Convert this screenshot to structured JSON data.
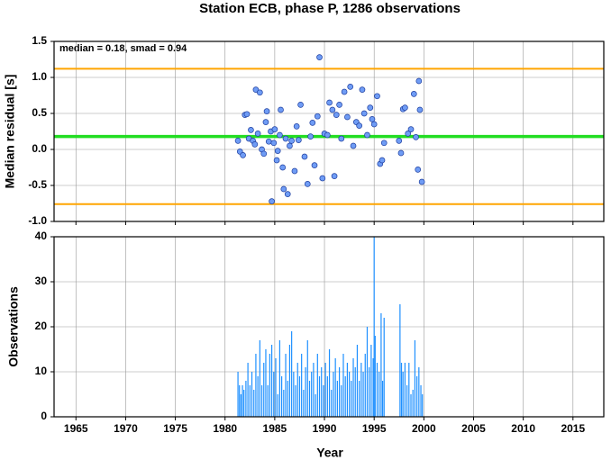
{
  "chart_data": [
    {
      "type": "scatter",
      "title": "Station ECB, phase P, 1286 observations",
      "ylabel": "Median residual [s]",
      "annotation": "median = 0.18, smad = 0.94",
      "xlim": [
        1962.8,
        2018.1
      ],
      "xticks": [
        1965,
        1970,
        1975,
        1980,
        1985,
        1990,
        1995,
        2000,
        2005,
        2010,
        2015
      ],
      "ylim": [
        -1.0,
        1.5
      ],
      "yticks": [
        {
          "value": -1.0,
          "label": "-1.0"
        },
        -0.5,
        {
          "value": 0.0,
          "label": "0.0"
        },
        0.5,
        {
          "value": 1.0,
          "label": "1.0"
        },
        1.5
      ],
      "grid": true,
      "color": "#6f9cf5",
      "edgecolor": "#1f3f9f",
      "reference_lines": [
        {
          "value": 1.12,
          "color": "#ffa500"
        },
        {
          "value": -0.76,
          "color": "#ffa500"
        },
        {
          "value": 0.18,
          "color": "#22dd22"
        }
      ],
      "x": [
        1981.3,
        1981.5,
        1981.8,
        1982.0,
        1982.2,
        1982.4,
        1982.6,
        1982.8,
        1983.0,
        1983.1,
        1983.3,
        1983.5,
        1983.7,
        1983.9,
        1984.1,
        1984.2,
        1984.4,
        1984.6,
        1984.7,
        1984.9,
        1985.0,
        1985.2,
        1985.3,
        1985.5,
        1985.6,
        1985.8,
        1985.9,
        1986.1,
        1986.3,
        1986.5,
        1986.7,
        1987.0,
        1987.2,
        1987.4,
        1987.6,
        1988.0,
        1988.3,
        1988.6,
        1988.8,
        1989.0,
        1989.3,
        1989.5,
        1989.8,
        1990.0,
        1990.3,
        1990.5,
        1990.8,
        1991.0,
        1991.2,
        1991.5,
        1991.7,
        1992.0,
        1992.3,
        1992.6,
        1992.9,
        1993.2,
        1993.5,
        1993.8,
        1994.0,
        1994.3,
        1994.6,
        1994.8,
        1995.0,
        1995.3,
        1995.6,
        1995.8,
        1996.0,
        1997.5,
        1997.7,
        1997.9,
        1998.1,
        1998.4,
        1998.7,
        1999.0,
        1999.2,
        1999.4,
        1999.5,
        1999.6,
        1999.8
      ],
      "values": [
        0.12,
        -0.03,
        -0.08,
        0.48,
        0.49,
        0.15,
        0.27,
        0.12,
        0.07,
        0.83,
        0.22,
        0.79,
        0.0,
        -0.06,
        0.38,
        0.53,
        0.11,
        0.25,
        -0.72,
        0.09,
        0.28,
        -0.15,
        -0.02,
        0.2,
        0.55,
        -0.25,
        -0.55,
        0.15,
        -0.62,
        0.05,
        0.12,
        -0.3,
        0.32,
        0.13,
        0.62,
        -0.1,
        -0.48,
        0.18,
        0.37,
        -0.22,
        0.46,
        1.28,
        -0.4,
        0.22,
        0.2,
        0.65,
        0.55,
        -0.37,
        0.48,
        0.62,
        0.15,
        0.8,
        0.45,
        0.87,
        0.05,
        0.38,
        0.33,
        0.83,
        0.5,
        0.2,
        0.58,
        0.42,
        0.35,
        0.74,
        -0.2,
        -0.15,
        0.09,
        0.12,
        -0.05,
        0.56,
        0.58,
        0.22,
        0.28,
        0.77,
        0.17,
        -0.28,
        0.95,
        0.55,
        -0.45
      ]
    },
    {
      "type": "bar",
      "ylabel": "Observations",
      "xlabel": "Year",
      "xlim": [
        1962.8,
        2018.1
      ],
      "xticks": [
        1965,
        1970,
        1975,
        1980,
        1985,
        1990,
        1995,
        2000,
        2005,
        2010,
        2015
      ],
      "ylim": [
        0,
        40
      ],
      "yticks": [
        0,
        10,
        20,
        30,
        40
      ],
      "grid": true,
      "color": "#1e90ff",
      "x": [
        1981.3,
        1981.45,
        1981.6,
        1981.75,
        1981.9,
        1982.1,
        1982.3,
        1982.5,
        1982.7,
        1982.9,
        1983.1,
        1983.3,
        1983.5,
        1983.7,
        1983.9,
        1984.1,
        1984.3,
        1984.5,
        1984.7,
        1984.9,
        1985.1,
        1985.3,
        1985.5,
        1985.7,
        1985.9,
        1986.1,
        1986.3,
        1986.5,
        1986.7,
        1986.9,
        1987.1,
        1987.3,
        1987.5,
        1987.7,
        1987.9,
        1988.1,
        1988.3,
        1988.5,
        1988.7,
        1988.9,
        1989.1,
        1989.3,
        1989.5,
        1989.7,
        1989.9,
        1990.1,
        1990.3,
        1990.5,
        1990.7,
        1990.9,
        1991.1,
        1991.3,
        1991.5,
        1991.7,
        1991.9,
        1992.1,
        1992.3,
        1992.5,
        1992.7,
        1992.9,
        1993.1,
        1993.3,
        1993.5,
        1993.7,
        1993.9,
        1994.1,
        1994.3,
        1994.5,
        1994.7,
        1994.9,
        1995.0,
        1995.1,
        1995.3,
        1995.5,
        1995.7,
        1995.85,
        1996.0,
        1997.6,
        1997.75,
        1997.9,
        1998.1,
        1998.3,
        1998.5,
        1998.7,
        1998.9,
        1999.1,
        1999.3,
        1999.5,
        1999.7,
        1999.85
      ],
      "values": [
        10,
        7,
        5,
        7,
        6,
        8,
        12,
        7,
        10,
        6,
        14,
        9,
        17,
        7,
        12,
        15,
        7,
        14,
        16,
        10,
        13,
        5,
        17,
        9,
        6,
        14,
        8,
        16,
        19,
        10,
        7,
        12,
        9,
        14,
        6,
        11,
        17,
        8,
        10,
        12,
        5,
        14,
        9,
        11,
        7,
        12,
        9,
        15,
        6,
        10,
        13,
        8,
        11,
        7,
        14,
        9,
        12,
        10,
        8,
        13,
        11,
        16,
        8,
        12,
        10,
        14,
        20,
        11,
        16,
        13,
        40,
        18,
        12,
        10,
        23,
        8,
        22,
        25,
        12,
        10,
        12,
        7,
        12,
        5,
        6,
        17,
        9,
        11,
        7,
        5
      ]
    }
  ]
}
